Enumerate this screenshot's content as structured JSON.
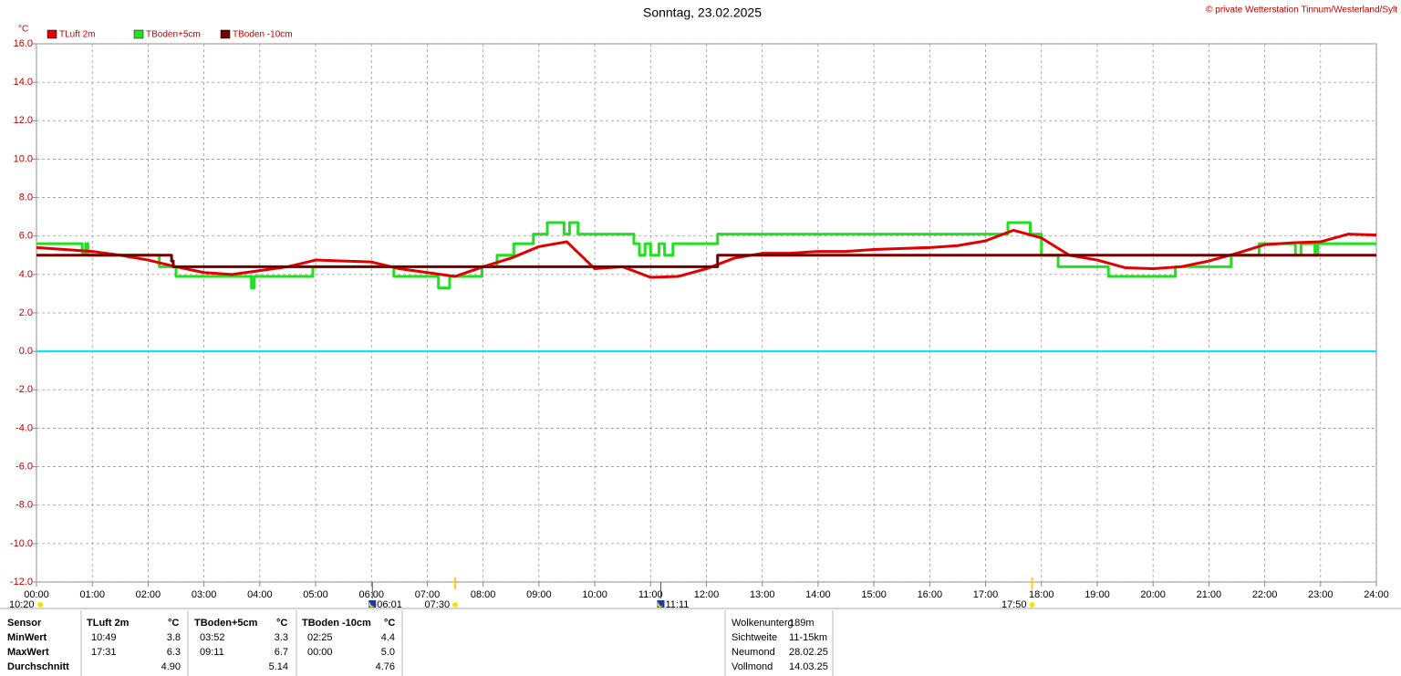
{
  "chart_data": {
    "type": "line",
    "title": "Sonntag, 23.02.2025",
    "copyright": "© private Wetterstation Tinnum/Westerland/Sylt",
    "y_label": "°C",
    "legend": "top-left",
    "grid": true,
    "zero_line_color": "#00e0f0",
    "xlim": [
      0,
      24
    ],
    "xticks": [
      {
        "value": 0,
        "label": "00:00"
      },
      {
        "value": 1,
        "label": "01:00"
      },
      {
        "value": 2,
        "label": "02:00"
      },
      {
        "value": 3,
        "label": "03:00"
      },
      {
        "value": 4,
        "label": "04:00"
      },
      {
        "value": 5,
        "label": "05:00"
      },
      {
        "value": 6,
        "label": "06:00"
      },
      {
        "value": 7,
        "label": "07:00"
      },
      {
        "value": 8,
        "label": "08:00"
      },
      {
        "value": 9,
        "label": "09:00"
      },
      {
        "value": 10,
        "label": "10:00"
      },
      {
        "value": 11,
        "label": "11:00"
      },
      {
        "value": 12,
        "label": "12:00"
      },
      {
        "value": 13,
        "label": "13:00"
      },
      {
        "value": 14,
        "label": "14:00"
      },
      {
        "value": 15,
        "label": "15:00"
      },
      {
        "value": 16,
        "label": "16:00"
      },
      {
        "value": 17,
        "label": "17:00"
      },
      {
        "value": 18,
        "label": "18:00"
      },
      {
        "value": 19,
        "label": "19:00"
      },
      {
        "value": 20,
        "label": "20:00"
      },
      {
        "value": 21,
        "label": "21:00"
      },
      {
        "value": 22,
        "label": "22:00"
      },
      {
        "value": 23,
        "label": "23:00"
      },
      {
        "value": 24,
        "label": "24:00"
      }
    ],
    "ylim": [
      -12,
      16
    ],
    "yticks": [
      {
        "value": 16,
        "label": "16.0"
      },
      {
        "value": 14,
        "label": "14.0"
      },
      {
        "value": 12,
        "label": "12.0"
      },
      {
        "value": 10,
        "label": "10.0"
      },
      {
        "value": 8,
        "label": "8.0"
      },
      {
        "value": 6,
        "label": "6.0"
      },
      {
        "value": 4,
        "label": "4.0"
      },
      {
        "value": 2,
        "label": "2.0"
      },
      {
        "value": 0,
        "label": "0.0"
      },
      {
        "value": -2,
        "label": "-2.0"
      },
      {
        "value": -4,
        "label": "-4.0"
      },
      {
        "value": -6,
        "label": "-6.0"
      },
      {
        "value": -8,
        "label": "-8.0"
      },
      {
        "value": -10,
        "label": "-10.0"
      },
      {
        "value": -12,
        "label": "-12.0"
      }
    ],
    "series": [
      {
        "name": "TLuft 2m",
        "color": "#e00000",
        "x": [
          0,
          0.5,
          1,
          1.5,
          2,
          2.5,
          3,
          3.5,
          4,
          4.5,
          5,
          5.5,
          6,
          6.5,
          7,
          7.5,
          8,
          8.5,
          9,
          9.5,
          10,
          10.5,
          11,
          11.5,
          12,
          12.5,
          13,
          13.5,
          14,
          14.5,
          15,
          15.5,
          16,
          16.5,
          17,
          17.5,
          18,
          18.5,
          19,
          19.5,
          20,
          20.5,
          21,
          21.5,
          22,
          22.5,
          23,
          23.5,
          24
        ],
        "values": [
          5.4,
          5.3,
          5.2,
          5.0,
          4.75,
          4.4,
          4.1,
          4.0,
          4.2,
          4.4,
          4.75,
          4.7,
          4.65,
          4.3,
          4.1,
          3.9,
          4.4,
          4.85,
          5.45,
          5.7,
          4.3,
          4.4,
          3.85,
          3.9,
          4.3,
          4.85,
          5.1,
          5.1,
          5.2,
          5.2,
          5.3,
          5.35,
          5.4,
          5.5,
          5.75,
          6.3,
          5.9,
          5.0,
          4.75,
          4.35,
          4.3,
          4.4,
          4.7,
          5.1,
          5.55,
          5.65,
          5.7,
          6.1,
          6.05
        ]
      },
      {
        "name": "TBoden+5cm",
        "color": "#20e020",
        "x": [
          0,
          0.82,
          0.82,
          0.88,
          0.88,
          0.92,
          0.92,
          2.2,
          2.2,
          2.5,
          2.5,
          3.85,
          3.85,
          3.9,
          3.9,
          4.95,
          4.95,
          6.4,
          6.4,
          7.2,
          7.2,
          7.4,
          7.4,
          7.98,
          7.98,
          8.25,
          8.25,
          8.55,
          8.55,
          8.9,
          8.9,
          9.15,
          9.15,
          9.45,
          9.45,
          9.55,
          9.55,
          9.7,
          9.7,
          10.7,
          10.7,
          10.8,
          10.8,
          10.9,
          10.9,
          11.0,
          11.0,
          11.15,
          11.15,
          11.25,
          11.25,
          11.4,
          11.4,
          12.2,
          12.2,
          17.4,
          17.4,
          17.8,
          17.8,
          18.0,
          18.0,
          18.3,
          18.3,
          19.2,
          19.2,
          20.4,
          20.4,
          21.4,
          21.4,
          21.9,
          21.9,
          22.55,
          22.55,
          22.65,
          22.65,
          22.9,
          22.9,
          22.95,
          22.95,
          24
        ],
        "values": [
          5.6,
          5.6,
          5.1,
          5.1,
          5.6,
          5.6,
          5.0,
          5.0,
          4.4,
          4.4,
          3.9,
          3.9,
          3.3,
          3.3,
          3.9,
          3.9,
          4.4,
          4.4,
          3.9,
          3.9,
          3.3,
          3.3,
          3.9,
          3.9,
          4.4,
          4.4,
          5.0,
          5.0,
          5.6,
          5.6,
          6.1,
          6.1,
          6.7,
          6.7,
          6.1,
          6.1,
          6.7,
          6.7,
          6.1,
          6.1,
          5.6,
          5.6,
          5.0,
          5.0,
          5.6,
          5.6,
          5.0,
          5.0,
          5.6,
          5.6,
          5.0,
          5.0,
          5.6,
          5.6,
          6.1,
          6.1,
          6.7,
          6.7,
          6.1,
          6.1,
          5.0,
          5.0,
          4.4,
          4.4,
          3.9,
          3.9,
          4.4,
          4.4,
          5.0,
          5.0,
          5.6,
          5.6,
          5.0,
          5.0,
          5.6,
          5.6,
          5.0,
          5.0,
          5.6,
          5.6
        ]
      },
      {
        "name": "TBoden -10cm",
        "color": "#700000",
        "x": [
          0,
          2.42,
          2.42,
          2.45,
          2.45,
          12.2,
          12.2,
          24
        ],
        "values": [
          5.0,
          5.0,
          4.7,
          4.7,
          4.4,
          4.4,
          5.0,
          5.0
        ]
      }
    ],
    "day_length": "10:20",
    "events": [
      {
        "value": 6.017,
        "label": "06:01",
        "kind": "moon"
      },
      {
        "value": 7.5,
        "label": "07:30",
        "kind": "sun"
      },
      {
        "value": 11.183,
        "label": "11:11",
        "kind": "moon"
      },
      {
        "value": 17.833,
        "label": "17:50",
        "kind": "sun"
      }
    ]
  },
  "stats": {
    "header": [
      "Sensor",
      "TLuft 2m",
      "°C",
      "TBoden+5cm",
      "°C",
      "TBoden -10cm",
      "°C"
    ],
    "rows": [
      [
        "MinWert",
        "10:49",
        "3.8",
        "03:52",
        "3.3",
        "02:25",
        "4.4"
      ],
      [
        "MaxWert",
        "17:31",
        "6.3",
        "09:11",
        "6.7",
        "00:00",
        "5.0"
      ],
      [
        "Durchschnitt",
        null,
        "4.90",
        null,
        "5.14",
        null,
        "4.76"
      ]
    ]
  },
  "info": {
    "rows": [
      [
        "Wolkenunterg",
        "189m"
      ],
      [
        "Sichtweite",
        "11-15km"
      ],
      [
        "Neumond",
        "28.02.25"
      ],
      [
        "Vollmond",
        "14.03.25"
      ]
    ]
  }
}
